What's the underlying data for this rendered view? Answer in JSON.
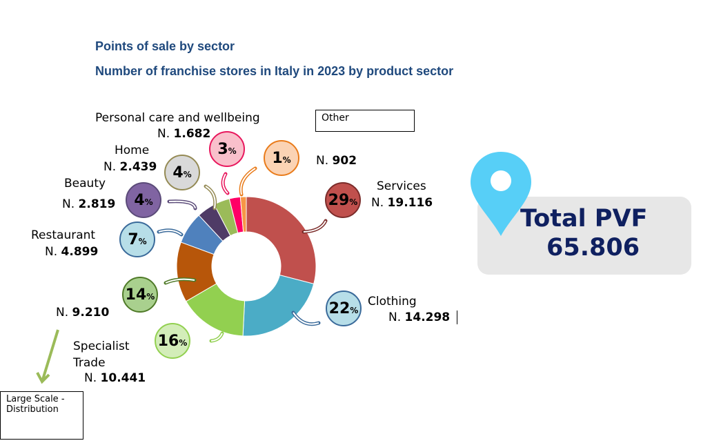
{
  "chart_data": {
    "type": "pie",
    "title": "Points of sale by sector",
    "subtitle": "Number of franchise stores in Italy in 2023 by product sector",
    "unit_prefix": "N.",
    "percent_sign": "%",
    "slices": [
      {
        "name": "Services",
        "value": 19116,
        "value_label": "19.116",
        "percent": "29",
        "color": "#C0504D",
        "fill": "#C0504D",
        "border": "#7B2C2A"
      },
      {
        "name": "Clothing",
        "value": 14298,
        "value_label": "14.298",
        "percent": "22",
        "color": "#4BACC6",
        "fill": "#B7DEE8",
        "border": "#3A6A9A"
      },
      {
        "name": "Specialist Trade",
        "value": 10441,
        "value_label": "10.441",
        "percent": "16",
        "color": "#92D050",
        "fill": "#D3EDB9",
        "border": "#92D050"
      },
      {
        "name": "Large Scale - Distribution",
        "value": 9210,
        "value_label": "9.210",
        "percent": "14",
        "color": "#B7560A",
        "fill": "#A9D08E",
        "border": "#4F7A28"
      },
      {
        "name": "Restaurant",
        "value": 4899,
        "value_label": "4.899",
        "percent": "7",
        "color": "#4F81BD",
        "fill": "#B7DEE8",
        "border": "#3A6A9A"
      },
      {
        "name": "Beauty",
        "value": 2819,
        "value_label": "2.819",
        "percent": "4",
        "color": "#4F3B66",
        "fill": "#8064A2",
        "border": "#5B4B79"
      },
      {
        "name": "Home",
        "value": 2439,
        "value_label": "2.439",
        "percent": "4",
        "color": "#9BBB59",
        "fill": "#D9D9D9",
        "border": "#948A54"
      },
      {
        "name": "Personal care and wellbeing",
        "value": 1682,
        "value_label": "1.682",
        "percent": "3",
        "color": "#FF0066",
        "fill": "#F9C0CB",
        "border": "#E8175D"
      },
      {
        "name": "Other",
        "value": 902,
        "value_label": "902",
        "percent": "1",
        "color": "#F79646",
        "fill": "#FBD3B4",
        "border": "#E97B1A"
      }
    ]
  },
  "total": {
    "label": "Total PVF",
    "value": "65.806",
    "pin_color": "#57CFF7"
  }
}
